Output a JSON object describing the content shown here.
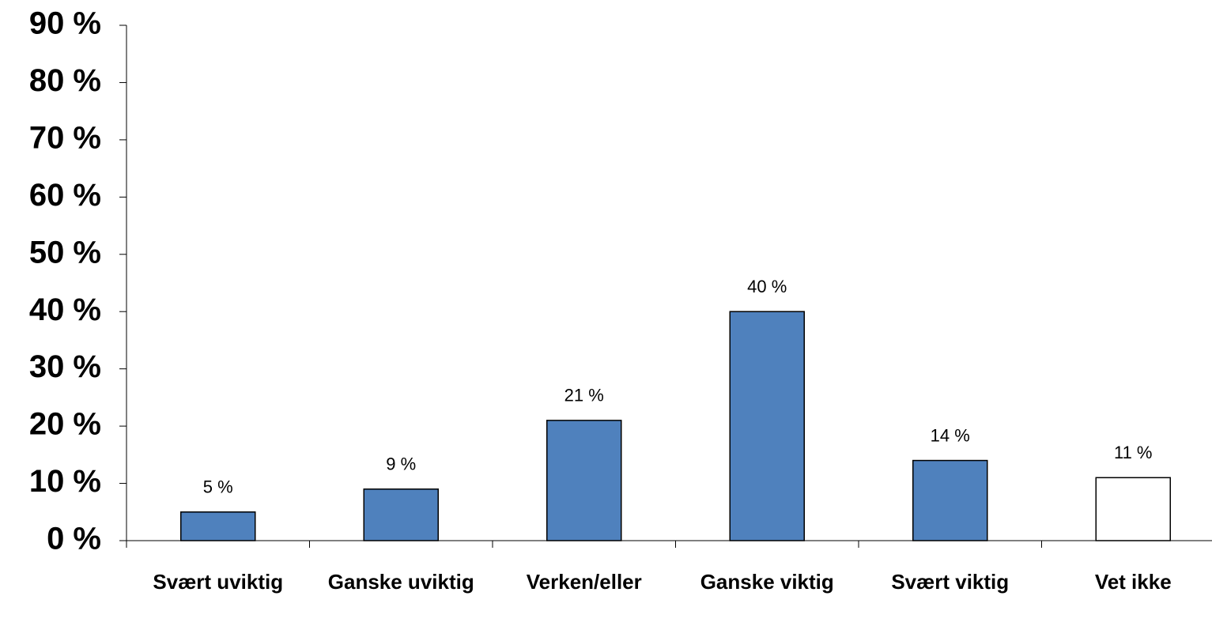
{
  "chart_data": {
    "type": "bar",
    "categories": [
      "Svært uviktig",
      "Ganske uviktig",
      "Verken/eller",
      "Ganske viktig",
      "Svært viktig",
      "Vet ikke"
    ],
    "values": [
      5,
      9,
      21,
      40,
      14,
      11
    ],
    "value_labels": [
      "5 %",
      "9 %",
      "21 %",
      "40 %",
      "14 %",
      "11 %"
    ],
    "colors": [
      "#4f81bd",
      "#4f81bd",
      "#4f81bd",
      "#4f81bd",
      "#4f81bd",
      "#ffffff"
    ],
    "ylim": [
      0,
      90
    ],
    "yticks": [
      {
        "value": 0,
        "label": "0 %"
      },
      {
        "value": 10,
        "label": "10 %"
      },
      {
        "value": 20,
        "label": "20 %"
      },
      {
        "value": 30,
        "label": "30 %"
      },
      {
        "value": 40,
        "label": "40 %"
      },
      {
        "value": 50,
        "label": "50 %"
      },
      {
        "value": 60,
        "label": "60 %"
      },
      {
        "value": 70,
        "label": "70 %"
      },
      {
        "value": 80,
        "label": "80 %"
      },
      {
        "value": 90,
        "label": "90 %"
      }
    ],
    "grid": false
  }
}
